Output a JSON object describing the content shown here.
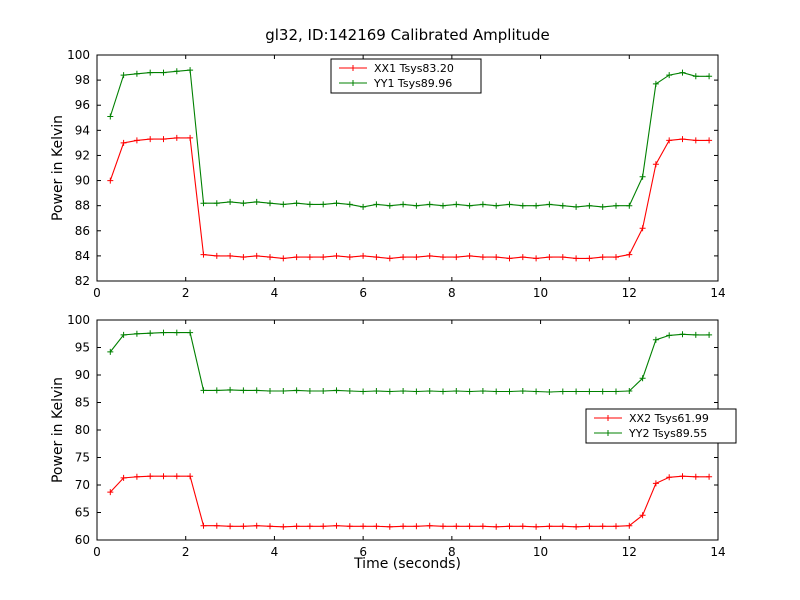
{
  "chart_data": [
    {
      "type": "line",
      "title": "gl32, ID:142169 Calibrated Amplitude",
      "xlabel": "",
      "ylabel": "Power in Kelvin",
      "xlim": [
        0,
        14
      ],
      "ylim": [
        82,
        100
      ],
      "xticks": [
        0,
        2,
        4,
        6,
        8,
        10,
        12,
        14
      ],
      "yticks": [
        82,
        84,
        86,
        88,
        90,
        92,
        94,
        96,
        98,
        100
      ],
      "grid": false,
      "legend_position": "upper center",
      "x": [
        0.3,
        0.6,
        0.9,
        1.2,
        1.5,
        1.8,
        2.1,
        2.4,
        2.7,
        3.0,
        3.3,
        3.6,
        3.9,
        4.2,
        4.5,
        4.8,
        5.1,
        5.4,
        5.7,
        6.0,
        6.3,
        6.6,
        6.9,
        7.2,
        7.5,
        7.8,
        8.1,
        8.4,
        8.7,
        9.0,
        9.3,
        9.6,
        9.9,
        10.2,
        10.5,
        10.8,
        11.1,
        11.4,
        11.7,
        12.0,
        12.3,
        12.6,
        12.9,
        13.2,
        13.5,
        13.8
      ],
      "series": [
        {
          "name": "XX1 Tsys83.20",
          "color": "#ff0000",
          "marker": "+",
          "values": [
            90.0,
            93.0,
            93.2,
            93.3,
            93.3,
            93.4,
            93.4,
            84.1,
            84.0,
            84.0,
            83.9,
            84.0,
            83.9,
            83.8,
            83.9,
            83.9,
            83.9,
            84.0,
            83.9,
            84.0,
            83.9,
            83.8,
            83.9,
            83.9,
            84.0,
            83.9,
            83.9,
            84.0,
            83.9,
            83.9,
            83.8,
            83.9,
            83.8,
            83.9,
            83.9,
            83.8,
            83.8,
            83.9,
            83.9,
            84.1,
            86.2,
            91.3,
            93.2,
            93.3,
            93.2,
            93.2
          ]
        },
        {
          "name": "YY1 Tsys89.96",
          "color": "#008000",
          "marker": "+",
          "values": [
            95.1,
            98.4,
            98.5,
            98.6,
            98.6,
            98.7,
            98.8,
            88.2,
            88.2,
            88.3,
            88.2,
            88.3,
            88.2,
            88.1,
            88.2,
            88.1,
            88.1,
            88.2,
            88.1,
            87.9,
            88.1,
            88.0,
            88.1,
            88.0,
            88.1,
            88.0,
            88.1,
            88.0,
            88.1,
            88.0,
            88.1,
            88.0,
            88.0,
            88.1,
            88.0,
            87.9,
            88.0,
            87.9,
            88.0,
            88.0,
            90.3,
            97.7,
            98.4,
            98.6,
            98.3,
            98.3
          ]
        }
      ]
    },
    {
      "type": "line",
      "title": "",
      "xlabel": "Time (seconds)",
      "ylabel": "Power in Kelvin",
      "xlim": [
        0,
        14
      ],
      "ylim": [
        60,
        100
      ],
      "xticks": [
        0,
        2,
        4,
        6,
        8,
        10,
        12,
        14
      ],
      "yticks": [
        60,
        65,
        70,
        75,
        80,
        85,
        90,
        95,
        100
      ],
      "grid": false,
      "legend_position": "center right",
      "x": [
        0.3,
        0.6,
        0.9,
        1.2,
        1.5,
        1.8,
        2.1,
        2.4,
        2.7,
        3.0,
        3.3,
        3.6,
        3.9,
        4.2,
        4.5,
        4.8,
        5.1,
        5.4,
        5.7,
        6.0,
        6.3,
        6.6,
        6.9,
        7.2,
        7.5,
        7.8,
        8.1,
        8.4,
        8.7,
        9.0,
        9.3,
        9.6,
        9.9,
        10.2,
        10.5,
        10.8,
        11.1,
        11.4,
        11.7,
        12.0,
        12.3,
        12.6,
        12.9,
        13.2,
        13.5,
        13.8
      ],
      "series": [
        {
          "name": "XX2 Tsys61.99",
          "color": "#ff0000",
          "marker": "+",
          "values": [
            68.7,
            71.3,
            71.5,
            71.6,
            71.6,
            71.6,
            71.6,
            62.6,
            62.6,
            62.5,
            62.5,
            62.6,
            62.5,
            62.4,
            62.5,
            62.5,
            62.5,
            62.6,
            62.5,
            62.5,
            62.5,
            62.4,
            62.5,
            62.5,
            62.6,
            62.5,
            62.5,
            62.5,
            62.5,
            62.4,
            62.5,
            62.5,
            62.4,
            62.5,
            62.5,
            62.4,
            62.5,
            62.5,
            62.5,
            62.6,
            64.5,
            70.3,
            71.4,
            71.6,
            71.5,
            71.5
          ]
        },
        {
          "name": "YY2 Tsys89.55",
          "color": "#008000",
          "marker": "+",
          "values": [
            94.2,
            97.3,
            97.5,
            97.6,
            97.7,
            97.7,
            97.7,
            87.2,
            87.2,
            87.3,
            87.2,
            87.2,
            87.1,
            87.1,
            87.2,
            87.1,
            87.1,
            87.2,
            87.1,
            87.0,
            87.1,
            87.0,
            87.1,
            87.0,
            87.1,
            87.0,
            87.1,
            87.0,
            87.1,
            87.0,
            87.0,
            87.1,
            87.0,
            86.9,
            87.0,
            87.0,
            87.0,
            87.0,
            87.0,
            87.1,
            89.4,
            96.4,
            97.2,
            97.4,
            97.3,
            97.3
          ]
        }
      ]
    }
  ]
}
